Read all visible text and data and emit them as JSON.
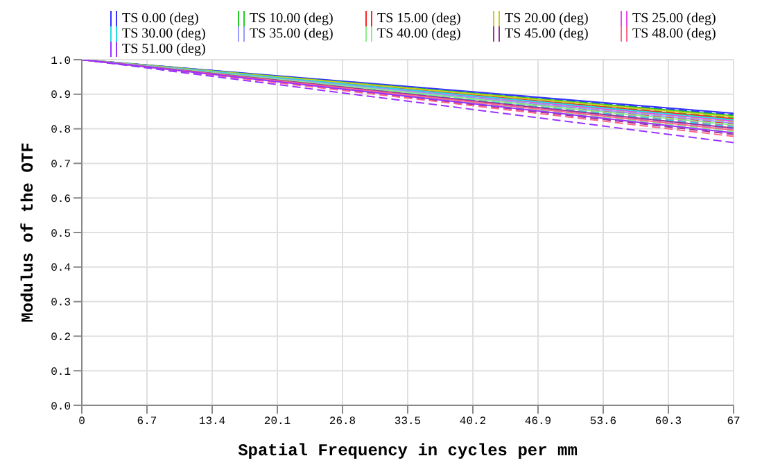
{
  "chart_data": {
    "type": "line",
    "xlabel": "Spatial Frequency in cycles per mm",
    "ylabel": "Modulus of the OTF",
    "x": [
      0,
      67
    ],
    "xlim": [
      0,
      67
    ],
    "xticks": [
      0,
      6.7,
      13.4,
      20.1,
      26.8,
      33.5,
      40.2,
      46.9,
      53.6,
      60.3,
      67
    ],
    "ylim": [
      0,
      1
    ],
    "yticks": [
      {
        "value": 0,
        "label": "0.0"
      },
      {
        "value": 0.1,
        "label": "0.1"
      },
      {
        "value": 0.2,
        "label": "0.2"
      },
      {
        "value": 0.3,
        "label": "0.3"
      },
      {
        "value": 0.4,
        "label": "0.4"
      },
      {
        "value": 0.5,
        "label": "0.5"
      },
      {
        "value": 0.6,
        "label": "0.6"
      },
      {
        "value": 0.7,
        "label": "0.7"
      },
      {
        "value": 0.8,
        "label": "0.8"
      },
      {
        "value": 0.9,
        "label": "0.9"
      },
      {
        "value": 1,
        "label": "1.0"
      }
    ],
    "grid": true,
    "legend": "top",
    "marker": "none",
    "series": [
      {
        "name": "TS 0.00 (deg)",
        "color": "#3333ff",
        "values": [
          1,
          0.845
        ],
        "line_style": "solid"
      },
      {
        "color": "#3333ff",
        "values": [
          1,
          0.841
        ],
        "line_style": "dashed"
      },
      {
        "name": "TS 10.00 (deg)",
        "color": "#22cc22",
        "values": [
          1,
          0.838
        ],
        "line_style": "solid"
      },
      {
        "color": "#22cc22",
        "values": [
          1,
          0.832
        ],
        "line_style": "dashed"
      },
      {
        "name": "TS 15.00 (deg)",
        "color": "#ff2222",
        "values": [
          1,
          0.829
        ],
        "line_style": "solid"
      },
      {
        "color": "#ff2222",
        "values": [
          1,
          0.814
        ],
        "line_style": "dashed"
      },
      {
        "name": "TS 20.00 (deg)",
        "color": "#cccc22",
        "values": [
          1,
          0.835
        ],
        "line_style": "solid"
      },
      {
        "color": "#cccc22",
        "values": [
          1,
          0.82
        ],
        "line_style": "dashed"
      },
      {
        "name": "TS 25.00 (deg)",
        "color": "#ee44ee",
        "values": [
          1,
          0.823
        ],
        "line_style": "solid"
      },
      {
        "color": "#ee44ee",
        "values": [
          1,
          0.808
        ],
        "line_style": "dashed"
      },
      {
        "name": "TS 30.00 (deg)",
        "color": "#22dddd",
        "values": [
          1,
          0.826
        ],
        "line_style": "solid"
      },
      {
        "color": "#22dddd",
        "values": [
          1,
          0.805
        ],
        "line_style": "dashed"
      },
      {
        "name": "TS 35.00 (deg)",
        "color": "#9999ff",
        "values": [
          1,
          0.817
        ],
        "line_style": "solid"
      },
      {
        "color": "#9999ff",
        "values": [
          1,
          0.799
        ],
        "line_style": "dashed"
      },
      {
        "name": "TS 40.00 (deg)",
        "color": "#88ee88",
        "values": [
          1,
          0.811
        ],
        "line_style": "solid"
      },
      {
        "color": "#88ee88",
        "values": [
          1,
          0.792
        ],
        "line_style": "dashed"
      },
      {
        "name": "TS 45.00 (deg)",
        "color": "#993399",
        "values": [
          1,
          0.802
        ],
        "line_style": "solid"
      },
      {
        "color": "#993399",
        "values": [
          1,
          0.784
        ],
        "line_style": "dashed"
      },
      {
        "name": "TS 48.00 (deg)",
        "color": "#ff6688",
        "values": [
          1,
          0.796
        ],
        "line_style": "solid"
      },
      {
        "color": "#ff6688",
        "values": [
          1,
          0.778
        ],
        "line_style": "dashed"
      },
      {
        "name": "TS 51.00 (deg)",
        "color": "#9933ff",
        "values": [
          1,
          0.788
        ],
        "line_style": "solid"
      },
      {
        "color": "#9933ff",
        "values": [
          1,
          0.76
        ],
        "line_style": "dashed"
      }
    ]
  }
}
